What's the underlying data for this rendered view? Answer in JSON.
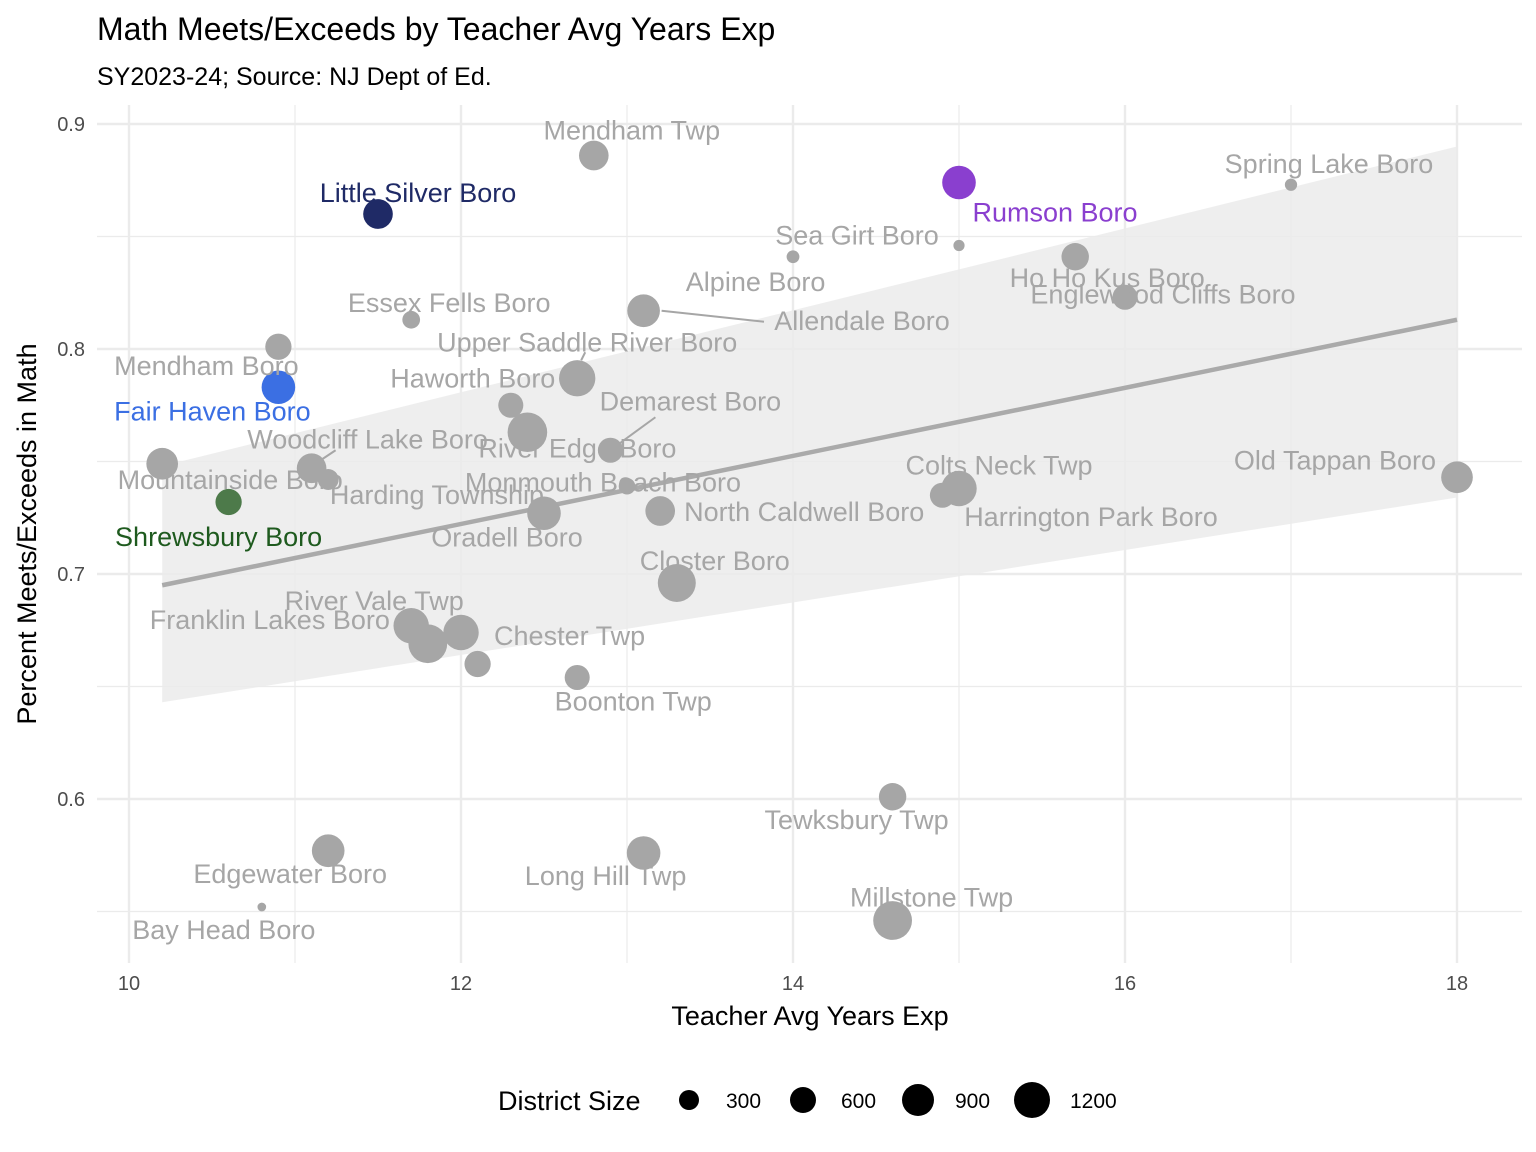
{
  "chart_data": {
    "type": "scatter",
    "title": "Math Meets/Exceeds by Teacher Avg Years Exp",
    "subtitle": "SY2023-24; Source: NJ Dept of Ed.",
    "xlabel": "Teacher Avg Years Exp",
    "ylabel": "Percent Meets/Exceeds in Math",
    "xlim": [
      9.85,
      18.4
    ],
    "ylim": [
      0.533,
      0.904
    ],
    "x_ticks": [
      10,
      12,
      14,
      16,
      18
    ],
    "y_ticks": [
      0.6,
      0.7,
      0.8,
      0.9
    ],
    "x_tick_labels": [
      "10",
      "12",
      "14",
      "16",
      "18"
    ],
    "y_tick_labels": [
      "0.6",
      "0.7",
      "0.8",
      "0.9"
    ],
    "grid": true,
    "legend": {
      "title": "District Size",
      "position": "bottom",
      "sizes": [
        300,
        600,
        900,
        1200
      ],
      "labels": [
        "300",
        "600",
        "900",
        "1200"
      ]
    },
    "trend": {
      "x": [
        10.2,
        18.0
      ],
      "y": [
        0.695,
        0.813
      ],
      "ci_x": [
        10.2,
        18.0
      ],
      "ci_upper": [
        0.748,
        0.89
      ],
      "ci_lower": [
        0.643,
        0.734
      ],
      "color": "#aaaaaa"
    },
    "colors": {
      "default": "#a6a6a6",
      "little_silver": "#1f2a66",
      "rumson": "#8a3fcf",
      "fair_haven": "#3b6fe3",
      "shrewsbury": "#4d7a4a",
      "shrewsbury_label": "#1e5a1e",
      "grid": "#ebebeb",
      "ci_band": "#ebebeb"
    },
    "points": [
      {
        "name": "Mendham Twp",
        "x": 12.8,
        "y": 0.886,
        "size": 700,
        "color": "default"
      },
      {
        "name": "Little Silver Boro",
        "x": 11.5,
        "y": 0.86,
        "size": 700,
        "color": "little_silver"
      },
      {
        "name": "Rumson Boro",
        "x": 15.0,
        "y": 0.874,
        "size": 900,
        "color": "rumson"
      },
      {
        "name": "Spring Lake Boro",
        "x": 17.0,
        "y": 0.873,
        "size": 120,
        "color": "default"
      },
      {
        "name": "Sea Girt Boro",
        "x": 15.0,
        "y": 0.846,
        "size": 100,
        "color": "default"
      },
      {
        "name": "",
        "x": 14.0,
        "y": 0.841,
        "size": 130,
        "color": "default"
      },
      {
        "name": "Ho Ho Kus Boro",
        "x": 15.7,
        "y": 0.841,
        "size": 600,
        "color": "default"
      },
      {
        "name": "Englewood Cliffs Boro",
        "x": 16.0,
        "y": 0.823,
        "size": 500,
        "color": "default"
      },
      {
        "name": "Alpine Boro",
        "x": 13.1,
        "y": 0.817,
        "size": 850,
        "color": "default"
      },
      {
        "name": "Essex Fells Boro",
        "x": 11.7,
        "y": 0.813,
        "size": 250,
        "color": "default"
      },
      {
        "name": "Mendham Boro",
        "x": 10.9,
        "y": 0.801,
        "size": 550,
        "color": "default"
      },
      {
        "name": "Upper Saddle River Boro",
        "x": 12.7,
        "y": 0.787,
        "size": 1050,
        "color": "default"
      },
      {
        "name": "Fair Haven Boro",
        "x": 10.9,
        "y": 0.783,
        "size": 900,
        "color": "fair_haven"
      },
      {
        "name": "Haworth Boro",
        "x": 12.3,
        "y": 0.775,
        "size": 500,
        "color": "default"
      },
      {
        "name": "River Edge Boro",
        "x": 12.4,
        "y": 0.763,
        "size": 1250,
        "color": "default"
      },
      {
        "name": "Demarest Boro",
        "x": 12.9,
        "y": 0.755,
        "size": 500,
        "color": "default"
      },
      {
        "name": "Mountainside Boro",
        "x": 10.2,
        "y": 0.749,
        "size": 800,
        "color": "default"
      },
      {
        "name": "Woodcliff Lake Boro",
        "x": 11.1,
        "y": 0.747,
        "size": 700,
        "color": "default"
      },
      {
        "name": "",
        "x": 11.2,
        "y": 0.742,
        "size": 350,
        "color": "default"
      },
      {
        "name": "Old Tappan Boro",
        "x": 18.0,
        "y": 0.743,
        "size": 800,
        "color": "default"
      },
      {
        "name": "Monmouth Beach Boro",
        "x": 13.0,
        "y": 0.739,
        "size": 220,
        "color": "default"
      },
      {
        "name": "Colts Neck Twp",
        "x": 15.0,
        "y": 0.738,
        "size": 1000,
        "color": "default"
      },
      {
        "name": "",
        "x": 14.9,
        "y": 0.735,
        "size": 500,
        "color": "default"
      },
      {
        "name": "Shrewsbury Boro",
        "x": 10.6,
        "y": 0.732,
        "size": 550,
        "color": "shrewsbury"
      },
      {
        "name": "Oradell Boro",
        "x": 12.5,
        "y": 0.727,
        "size": 900,
        "color": "default"
      },
      {
        "name": "North Caldwell Boro",
        "x": 13.2,
        "y": 0.728,
        "size": 700,
        "color": "default"
      },
      {
        "name": "Closter Boro",
        "x": 13.3,
        "y": 0.696,
        "size": 1150,
        "color": "default"
      },
      {
        "name": "River Vale Twp",
        "x": 11.7,
        "y": 0.677,
        "size": 1000,
        "color": "default"
      },
      {
        "name": "",
        "x": 12.0,
        "y": 0.674,
        "size": 1000,
        "color": "default"
      },
      {
        "name": "Franklin Lakes Boro",
        "x": 11.8,
        "y": 0.669,
        "size": 1200,
        "color": "default"
      },
      {
        "name": "Chester Twp",
        "x": 12.1,
        "y": 0.66,
        "size": 550,
        "color": "default"
      },
      {
        "name": "Boonton Twp",
        "x": 12.7,
        "y": 0.654,
        "size": 500,
        "color": "default"
      },
      {
        "name": "Tewksbury Twp",
        "x": 14.6,
        "y": 0.601,
        "size": 600,
        "color": "default"
      },
      {
        "name": "Edgewater Boro",
        "x": 11.2,
        "y": 0.577,
        "size": 850,
        "color": "default"
      },
      {
        "name": "Long Hill Twp",
        "x": 13.1,
        "y": 0.576,
        "size": 900,
        "color": "default"
      },
      {
        "name": "Millstone Twp",
        "x": 14.6,
        "y": 0.546,
        "size": 1200,
        "color": "default"
      },
      {
        "name": "Bay Head Boro",
        "x": 10.8,
        "y": 0.552,
        "size": 60,
        "color": "default"
      }
    ]
  }
}
